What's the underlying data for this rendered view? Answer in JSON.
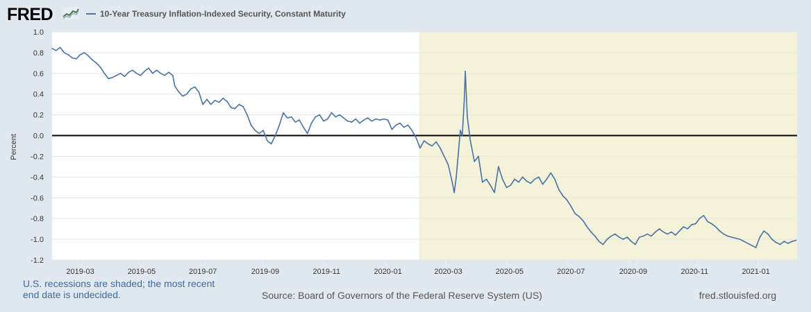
{
  "brand": {
    "name": "FRED"
  },
  "chart_data": {
    "type": "line",
    "title": "10-Year Treasury Inflation-Indexed Security, Constant Maturity",
    "ylabel": "Percent",
    "xlabel": "",
    "ylim": [
      -1.2,
      1.0
    ],
    "yticks": [
      1.0,
      0.8,
      0.6,
      0.4,
      0.2,
      0.0,
      -0.2,
      -0.4,
      -0.6,
      -0.8,
      -1.0,
      -1.2
    ],
    "yticklabels": [
      "1.0",
      "0.8",
      "0.6",
      "0.4",
      "0.2",
      "0.0",
      "-0.2",
      "-0.4",
      "-0.6",
      "-0.8",
      "-1.0",
      "-1.2"
    ],
    "x_start": "2019-02-01",
    "x_end": "2021-02-11",
    "xticks": [
      "2019-03-01",
      "2019-05-01",
      "2019-07-01",
      "2019-09-01",
      "2019-11-01",
      "2020-01-01",
      "2020-03-01",
      "2020-05-01",
      "2020-07-01",
      "2020-09-01",
      "2020-11-01",
      "2021-01-01"
    ],
    "xticklabels": [
      "2019-03",
      "2019-05",
      "2019-07",
      "2019-09",
      "2019-11",
      "2020-01",
      "2020-03",
      "2020-05",
      "2020-07",
      "2020-09",
      "2020-11",
      "2021-01"
    ],
    "recession": {
      "start": "2020-02-01",
      "end": "2021-02-11"
    },
    "zero_line": 0.0,
    "series": [
      {
        "name": "10-Year Treasury Inflation-Indexed Security, Constant Maturity",
        "color": "#4572a7",
        "points": [
          [
            "2019-02-01",
            0.84
          ],
          [
            "2019-02-05",
            0.82
          ],
          [
            "2019-02-09",
            0.85
          ],
          [
            "2019-02-13",
            0.8
          ],
          [
            "2019-02-17",
            0.78
          ],
          [
            "2019-02-21",
            0.75
          ],
          [
            "2019-02-25",
            0.74
          ],
          [
            "2019-03-01",
            0.78
          ],
          [
            "2019-03-05",
            0.8
          ],
          [
            "2019-03-09",
            0.77
          ],
          [
            "2019-03-13",
            0.73
          ],
          [
            "2019-03-17",
            0.7
          ],
          [
            "2019-03-21",
            0.66
          ],
          [
            "2019-03-25",
            0.6
          ],
          [
            "2019-03-29",
            0.55
          ],
          [
            "2019-04-02",
            0.56
          ],
          [
            "2019-04-06",
            0.58
          ],
          [
            "2019-04-10",
            0.6
          ],
          [
            "2019-04-14",
            0.57
          ],
          [
            "2019-04-18",
            0.61
          ],
          [
            "2019-04-22",
            0.63
          ],
          [
            "2019-04-26",
            0.6
          ],
          [
            "2019-04-30",
            0.58
          ],
          [
            "2019-05-04",
            0.62
          ],
          [
            "2019-05-08",
            0.65
          ],
          [
            "2019-05-12",
            0.6
          ],
          [
            "2019-05-16",
            0.63
          ],
          [
            "2019-05-20",
            0.6
          ],
          [
            "2019-05-24",
            0.58
          ],
          [
            "2019-05-28",
            0.61
          ],
          [
            "2019-06-01",
            0.58
          ],
          [
            "2019-06-03",
            0.48
          ],
          [
            "2019-06-07",
            0.42
          ],
          [
            "2019-06-11",
            0.38
          ],
          [
            "2019-06-15",
            0.4
          ],
          [
            "2019-06-19",
            0.45
          ],
          [
            "2019-06-23",
            0.47
          ],
          [
            "2019-06-27",
            0.42
          ],
          [
            "2019-07-01",
            0.3
          ],
          [
            "2019-07-05",
            0.35
          ],
          [
            "2019-07-09",
            0.3
          ],
          [
            "2019-07-13",
            0.34
          ],
          [
            "2019-07-17",
            0.32
          ],
          [
            "2019-07-21",
            0.36
          ],
          [
            "2019-07-25",
            0.33
          ],
          [
            "2019-07-29",
            0.27
          ],
          [
            "2019-08-02",
            0.26
          ],
          [
            "2019-08-06",
            0.3
          ],
          [
            "2019-08-10",
            0.28
          ],
          [
            "2019-08-14",
            0.2
          ],
          [
            "2019-08-18",
            0.1
          ],
          [
            "2019-08-22",
            0.05
          ],
          [
            "2019-08-26",
            0.02
          ],
          [
            "2019-08-30",
            0.05
          ],
          [
            "2019-09-03",
            -0.05
          ],
          [
            "2019-09-07",
            -0.08
          ],
          [
            "2019-09-11",
            0.0
          ],
          [
            "2019-09-15",
            0.1
          ],
          [
            "2019-09-19",
            0.22
          ],
          [
            "2019-09-23",
            0.17
          ],
          [
            "2019-09-27",
            0.18
          ],
          [
            "2019-10-01",
            0.13
          ],
          [
            "2019-10-05",
            0.15
          ],
          [
            "2019-10-09",
            0.08
          ],
          [
            "2019-10-13",
            0.02
          ],
          [
            "2019-10-17",
            0.12
          ],
          [
            "2019-10-21",
            0.18
          ],
          [
            "2019-10-25",
            0.2
          ],
          [
            "2019-10-29",
            0.14
          ],
          [
            "2019-11-02",
            0.16
          ],
          [
            "2019-11-06",
            0.22
          ],
          [
            "2019-11-10",
            0.18
          ],
          [
            "2019-11-14",
            0.2
          ],
          [
            "2019-11-18",
            0.17
          ],
          [
            "2019-11-22",
            0.14
          ],
          [
            "2019-11-26",
            0.13
          ],
          [
            "2019-11-30",
            0.16
          ],
          [
            "2019-12-04",
            0.12
          ],
          [
            "2019-12-08",
            0.15
          ],
          [
            "2019-12-12",
            0.17
          ],
          [
            "2019-12-16",
            0.14
          ],
          [
            "2019-12-20",
            0.16
          ],
          [
            "2019-12-24",
            0.15
          ],
          [
            "2019-12-28",
            0.16
          ],
          [
            "2020-01-01",
            0.15
          ],
          [
            "2020-01-05",
            0.06
          ],
          [
            "2020-01-09",
            0.1
          ],
          [
            "2020-01-13",
            0.12
          ],
          [
            "2020-01-17",
            0.08
          ],
          [
            "2020-01-21",
            0.1
          ],
          [
            "2020-01-25",
            0.05
          ],
          [
            "2020-01-29",
            -0.02
          ],
          [
            "2020-02-02",
            -0.12
          ],
          [
            "2020-02-06",
            -0.05
          ],
          [
            "2020-02-10",
            -0.08
          ],
          [
            "2020-02-14",
            -0.1
          ],
          [
            "2020-02-18",
            -0.06
          ],
          [
            "2020-02-22",
            -0.12
          ],
          [
            "2020-02-26",
            -0.2
          ],
          [
            "2020-03-01",
            -0.28
          ],
          [
            "2020-03-05",
            -0.45
          ],
          [
            "2020-03-07",
            -0.55
          ],
          [
            "2020-03-09",
            -0.4
          ],
          [
            "2020-03-11",
            -0.18
          ],
          [
            "2020-03-13",
            0.05
          ],
          [
            "2020-03-15",
            0.0
          ],
          [
            "2020-03-17",
            0.35
          ],
          [
            "2020-03-18",
            0.62
          ],
          [
            "2020-03-20",
            0.18
          ],
          [
            "2020-03-23",
            -0.05
          ],
          [
            "2020-03-27",
            -0.25
          ],
          [
            "2020-03-31",
            -0.2
          ],
          [
            "2020-04-04",
            -0.45
          ],
          [
            "2020-04-08",
            -0.42
          ],
          [
            "2020-04-12",
            -0.48
          ],
          [
            "2020-04-16",
            -0.55
          ],
          [
            "2020-04-20",
            -0.3
          ],
          [
            "2020-04-24",
            -0.42
          ],
          [
            "2020-04-28",
            -0.5
          ],
          [
            "2020-05-02",
            -0.48
          ],
          [
            "2020-05-06",
            -0.42
          ],
          [
            "2020-05-10",
            -0.45
          ],
          [
            "2020-05-14",
            -0.4
          ],
          [
            "2020-05-18",
            -0.44
          ],
          [
            "2020-05-22",
            -0.46
          ],
          [
            "2020-05-26",
            -0.42
          ],
          [
            "2020-05-30",
            -0.4
          ],
          [
            "2020-06-03",
            -0.47
          ],
          [
            "2020-06-07",
            -0.42
          ],
          [
            "2020-06-11",
            -0.36
          ],
          [
            "2020-06-15",
            -0.42
          ],
          [
            "2020-06-19",
            -0.52
          ],
          [
            "2020-06-23",
            -0.58
          ],
          [
            "2020-06-27",
            -0.62
          ],
          [
            "2020-07-01",
            -0.68
          ],
          [
            "2020-07-05",
            -0.75
          ],
          [
            "2020-07-09",
            -0.78
          ],
          [
            "2020-07-13",
            -0.82
          ],
          [
            "2020-07-17",
            -0.88
          ],
          [
            "2020-07-21",
            -0.93
          ],
          [
            "2020-07-25",
            -0.97
          ],
          [
            "2020-07-29",
            -1.02
          ],
          [
            "2020-08-02",
            -1.05
          ],
          [
            "2020-08-06",
            -1.0
          ],
          [
            "2020-08-10",
            -0.97
          ],
          [
            "2020-08-14",
            -0.95
          ],
          [
            "2020-08-18",
            -0.98
          ],
          [
            "2020-08-22",
            -1.0
          ],
          [
            "2020-08-26",
            -0.98
          ],
          [
            "2020-08-30",
            -1.02
          ],
          [
            "2020-09-03",
            -1.05
          ],
          [
            "2020-09-07",
            -0.98
          ],
          [
            "2020-09-11",
            -0.97
          ],
          [
            "2020-09-15",
            -0.95
          ],
          [
            "2020-09-19",
            -0.97
          ],
          [
            "2020-09-23",
            -0.93
          ],
          [
            "2020-09-27",
            -0.9
          ],
          [
            "2020-10-01",
            -0.93
          ],
          [
            "2020-10-05",
            -0.95
          ],
          [
            "2020-10-09",
            -0.93
          ],
          [
            "2020-10-13",
            -0.96
          ],
          [
            "2020-10-17",
            -0.92
          ],
          [
            "2020-10-21",
            -0.88
          ],
          [
            "2020-10-25",
            -0.9
          ],
          [
            "2020-10-29",
            -0.86
          ],
          [
            "2020-11-02",
            -0.85
          ],
          [
            "2020-11-06",
            -0.8
          ],
          [
            "2020-11-10",
            -0.77
          ],
          [
            "2020-11-14",
            -0.83
          ],
          [
            "2020-11-18",
            -0.85
          ],
          [
            "2020-11-22",
            -0.88
          ],
          [
            "2020-11-26",
            -0.92
          ],
          [
            "2020-11-30",
            -0.95
          ],
          [
            "2020-12-04",
            -0.97
          ],
          [
            "2020-12-08",
            -0.98
          ],
          [
            "2020-12-12",
            -0.99
          ],
          [
            "2020-12-16",
            -1.0
          ],
          [
            "2020-12-20",
            -1.02
          ],
          [
            "2020-12-24",
            -1.04
          ],
          [
            "2020-12-28",
            -1.06
          ],
          [
            "2021-01-01",
            -1.08
          ],
          [
            "2021-01-05",
            -0.98
          ],
          [
            "2021-01-09",
            -0.92
          ],
          [
            "2021-01-13",
            -0.95
          ],
          [
            "2021-01-17",
            -1.0
          ],
          [
            "2021-01-21",
            -1.03
          ],
          [
            "2021-01-25",
            -1.05
          ],
          [
            "2021-01-29",
            -1.02
          ],
          [
            "2021-02-02",
            -1.04
          ],
          [
            "2021-02-06",
            -1.02
          ],
          [
            "2021-02-10",
            -1.01
          ]
        ]
      }
    ]
  },
  "footer": {
    "note": "U.S. recessions are shaded; the most recent end date is undecided.",
    "source": "Source: Board of Governors of the Federal Reserve System (US)",
    "site": "fred.stlouisfed.org"
  }
}
